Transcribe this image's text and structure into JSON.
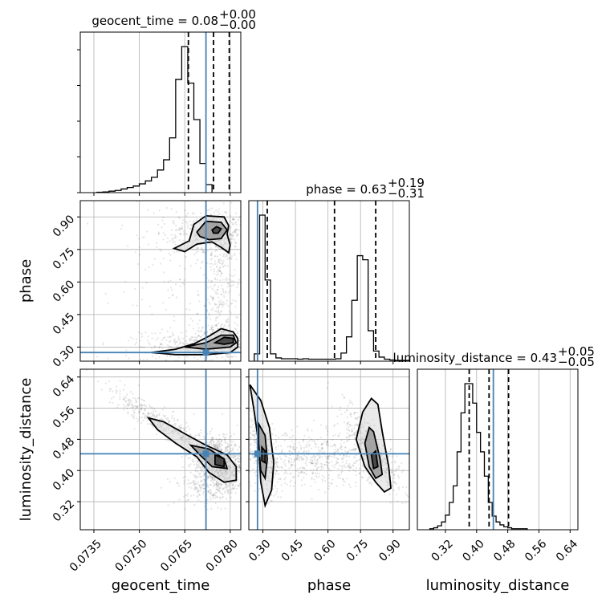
{
  "chart_data": {
    "type": "corner",
    "parameters": [
      "geocent_time",
      "phase",
      "luminosity_distance"
    ],
    "axis_labels": {
      "geocent_time": "geocent_time",
      "phase": "phase",
      "luminosity_distance": "luminosity_distance"
    },
    "titles": {
      "geocent_time": {
        "main": "geocent_time = 0.08",
        "sup": "+0.00",
        "sub": "−0.00"
      },
      "phase": {
        "main": "phase = 0.63",
        "sup": "+0.19",
        "sub": "−0.31"
      },
      "luminosity_distance": {
        "main": "luminosity_distance = 0.43",
        "sup": "+0.05",
        "sub": "−0.05"
      }
    },
    "ranges": {
      "geocent_time": [
        0.07305,
        0.07835
      ],
      "phase": [
        0.235,
        0.975
      ],
      "luminosity_distance": [
        0.248,
        0.66
      ]
    },
    "ticks": {
      "geocent_time": [
        "0.0735",
        "0.0750",
        "0.0765",
        "0.0780"
      ],
      "phase": [
        "0.30",
        "0.45",
        "0.60",
        "0.75",
        "0.90"
      ],
      "luminosity_distance": [
        "0.32",
        "0.40",
        "0.48",
        "0.56",
        "0.64"
      ]
    },
    "truths": {
      "geocent_time": 0.0772,
      "phase": 0.275,
      "luminosity_distance": 0.443
    },
    "quantiles": {
      "geocent_time": [
        0.07662,
        0.07745,
        0.07797
      ],
      "phase": [
        0.32,
        0.63,
        0.82
      ],
      "luminosity_distance": [
        0.381,
        0.432,
        0.482
      ]
    },
    "histograms": {
      "geocent_time": {
        "edges_start": 0.0736,
        "bin_width": 0.0002,
        "counts": [
          1,
          2,
          4,
          6,
          10,
          14,
          18,
          24,
          32,
          42,
          62,
          90,
          150,
          310,
          400,
          300,
          200,
          80,
          22
        ]
      },
      "phase": {
        "edges_start": 0.26,
        "bin_width": 0.025,
        "counts": [
          18,
          360,
          200,
          18,
          8,
          6,
          6,
          6,
          5,
          6,
          5,
          5,
          5,
          5,
          5,
          6,
          20,
          60,
          150,
          260,
          250,
          75,
          25,
          10,
          5,
          3,
          2,
          2,
          2
        ]
      },
      "luminosity_distance": {
        "edges_start": 0.28,
        "bin_width": 0.01,
        "counts": [
          1,
          2,
          4,
          8,
          15,
          28,
          45,
          80,
          120,
          150,
          150,
          130,
          100,
          80,
          55,
          28,
          14,
          8,
          5,
          3,
          2,
          1,
          1,
          1,
          1
        ]
      }
    },
    "grid": true
  }
}
